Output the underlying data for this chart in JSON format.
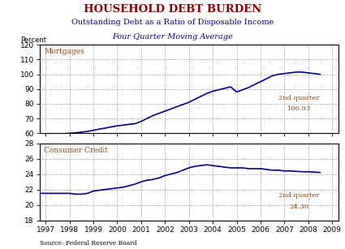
{
  "title": "HOUSEHOLD DEBT BURDEN",
  "subtitle1": "Outstanding Debt as a Ratio of Disposable Income",
  "subtitle2": "Four Quarter Moving Average",
  "ylabel": "Percent",
  "source": "Source: Federal Reserve Board",
  "title_color": "#8B0000",
  "subtitle_color": "#00008B",
  "line_color": "#00008B",
  "annotation_color": "#8B4513",
  "mortgages_label": "Mortgages",
  "mortgages_annotation_line1": "2nd quarter",
  "mortgages_annotation_line2": "100.93",
  "mortgages_ylim": [
    60,
    120
  ],
  "mortgages_yticks": [
    60,
    70,
    80,
    90,
    100,
    110,
    120
  ],
  "consumer_label": "Consumer Credit",
  "consumer_annotation_line1": "2nd quarter",
  "consumer_annotation_line2": "24.30",
  "consumer_ylim": [
    18,
    28
  ],
  "consumer_yticks": [
    18,
    20,
    22,
    24,
    26,
    28
  ],
  "xlim": [
    1996.75,
    2009.25
  ],
  "xticks": [
    1997,
    1998,
    1999,
    2000,
    2001,
    2002,
    2003,
    2004,
    2005,
    2006,
    2007,
    2008,
    2009
  ],
  "xticklabels": [
    "1997",
    "1998",
    "1999",
    "2000",
    "2001",
    "2002",
    "2003",
    "2004",
    "2005",
    "2006",
    "2007",
    "2008",
    "2009"
  ],
  "mortgages_x": [
    1996.75,
    1997.0,
    1997.25,
    1997.5,
    1997.75,
    1998.0,
    1998.25,
    1998.5,
    1998.75,
    1999.0,
    1999.25,
    1999.5,
    1999.75,
    2000.0,
    2000.25,
    2000.5,
    2000.75,
    2001.0,
    2001.25,
    2001.5,
    2001.75,
    2002.0,
    2002.25,
    2002.5,
    2002.75,
    2003.0,
    2003.25,
    2003.5,
    2003.75,
    2004.0,
    2004.25,
    2004.5,
    2004.75,
    2005.0,
    2005.25,
    2005.5,
    2005.75,
    2006.0,
    2006.25,
    2006.5,
    2006.75,
    2007.0,
    2007.25,
    2007.5,
    2007.75,
    2008.0,
    2008.25,
    2008.5
  ],
  "mortgages_y": [
    59.0,
    59.2,
    59.3,
    59.5,
    59.7,
    60.0,
    60.3,
    60.7,
    61.2,
    62.0,
    62.8,
    63.5,
    64.3,
    65.0,
    65.5,
    66.0,
    66.5,
    68.0,
    70.0,
    72.0,
    73.5,
    75.0,
    76.5,
    78.0,
    79.5,
    81.0,
    83.0,
    85.0,
    87.0,
    88.5,
    89.5,
    90.5,
    91.5,
    88.0,
    89.5,
    91.0,
    93.0,
    95.0,
    97.0,
    99.0,
    100.0,
    100.5,
    101.0,
    101.5,
    101.5,
    100.93,
    100.5,
    100.0
  ],
  "consumer_x": [
    1996.75,
    1997.0,
    1997.25,
    1997.5,
    1997.75,
    1998.0,
    1998.25,
    1998.5,
    1998.75,
    1999.0,
    1999.25,
    1999.5,
    1999.75,
    2000.0,
    2000.25,
    2000.5,
    2000.75,
    2001.0,
    2001.25,
    2001.5,
    2001.75,
    2002.0,
    2002.25,
    2002.5,
    2002.75,
    2003.0,
    2003.25,
    2003.5,
    2003.75,
    2004.0,
    2004.25,
    2004.5,
    2004.75,
    2005.0,
    2005.25,
    2005.5,
    2005.75,
    2006.0,
    2006.25,
    2006.5,
    2006.75,
    2007.0,
    2007.25,
    2007.5,
    2007.75,
    2008.0,
    2008.25,
    2008.5
  ],
  "consumer_y": [
    21.5,
    21.5,
    21.5,
    21.5,
    21.5,
    21.5,
    21.4,
    21.4,
    21.5,
    21.8,
    21.9,
    22.0,
    22.1,
    22.2,
    22.3,
    22.5,
    22.7,
    23.0,
    23.2,
    23.3,
    23.5,
    23.8,
    24.0,
    24.2,
    24.5,
    24.8,
    25.0,
    25.1,
    25.2,
    25.1,
    25.0,
    24.9,
    24.8,
    24.8,
    24.8,
    24.7,
    24.7,
    24.7,
    24.6,
    24.5,
    24.5,
    24.4,
    24.4,
    24.35,
    24.3,
    24.3,
    24.25,
    24.2
  ]
}
